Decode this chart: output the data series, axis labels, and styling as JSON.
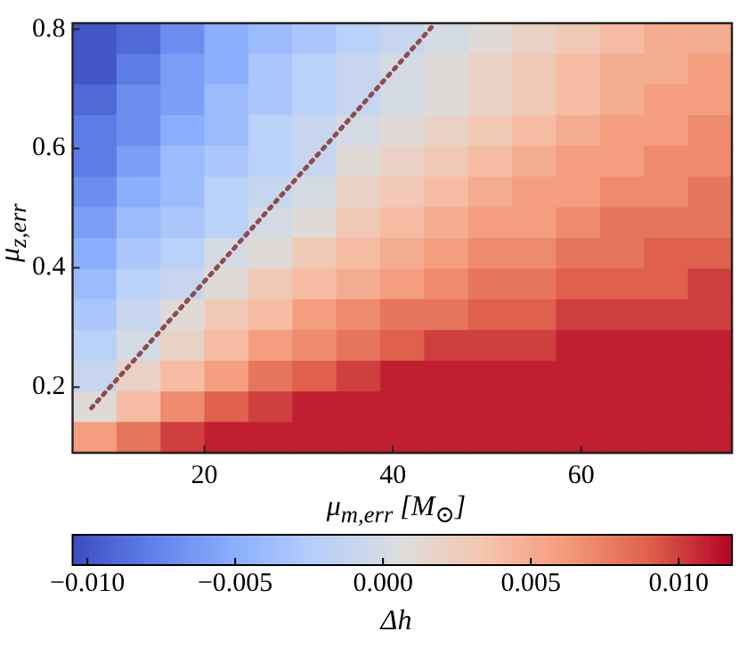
{
  "chart_data": {
    "type": "heatmap",
    "xlabel": "μ$_{m,err}$ [M$_{⊙}$]",
    "ylabel": "μ$_{z,err}$",
    "clabel": "Δh",
    "xlim": [
      6,
      76
    ],
    "ylim": [
      0.09,
      0.81
    ],
    "xticks": [
      20,
      40,
      60
    ],
    "yticks": [
      0.2,
      0.4,
      0.6,
      0.8
    ],
    "clim": [
      -0.0105,
      0.0118
    ],
    "cticks": [
      {
        "value": -0.01,
        "label": "−0.010"
      },
      {
        "value": -0.005,
        "label": "−0.005"
      },
      {
        "value": 0,
        "label": "0.000"
      },
      {
        "value": 0.005,
        "label": "0.005"
      },
      {
        "value": 0.01,
        "label": "0.010"
      }
    ],
    "cells": [
      [
        -0.01,
        -0.009,
        -0.007,
        -0.005,
        -0.004,
        -0.003,
        -0.002,
        -0.001,
        0.0,
        0.001,
        0.002,
        0.003,
        0.004,
        0.005,
        0.005
      ],
      [
        -0.01,
        -0.008,
        -0.006,
        -0.005,
        -0.003,
        -0.002,
        -0.001,
        0.0,
        0.001,
        0.002,
        0.003,
        0.004,
        0.005,
        0.005,
        0.006
      ],
      [
        -0.009,
        -0.007,
        -0.006,
        -0.004,
        -0.003,
        -0.002,
        -0.001,
        0.0,
        0.001,
        0.002,
        0.003,
        0.004,
        0.005,
        0.006,
        0.006
      ],
      [
        -0.008,
        -0.007,
        -0.005,
        -0.004,
        -0.002,
        -0.001,
        0.0,
        0.001,
        0.002,
        0.003,
        0.004,
        0.005,
        0.006,
        0.006,
        0.007
      ],
      [
        -0.008,
        -0.006,
        -0.004,
        -0.003,
        -0.002,
        -0.001,
        0.001,
        0.002,
        0.003,
        0.004,
        0.005,
        0.006,
        0.006,
        0.007,
        0.007
      ],
      [
        -0.007,
        -0.005,
        -0.004,
        -0.002,
        -0.001,
        0.0,
        0.002,
        0.003,
        0.004,
        0.005,
        0.006,
        0.006,
        0.007,
        0.007,
        0.008
      ],
      [
        -0.006,
        -0.004,
        -0.003,
        -0.002,
        0.0,
        0.001,
        0.003,
        0.004,
        0.005,
        0.006,
        0.006,
        0.007,
        0.008,
        0.008,
        0.008
      ],
      [
        -0.005,
        -0.003,
        -0.002,
        0.0,
        0.001,
        0.003,
        0.004,
        0.005,
        0.006,
        0.007,
        0.007,
        0.008,
        0.008,
        0.009,
        0.009
      ],
      [
        -0.004,
        -0.002,
        -0.001,
        0.001,
        0.003,
        0.004,
        0.005,
        0.006,
        0.007,
        0.008,
        0.008,
        0.009,
        0.009,
        0.009,
        0.01
      ],
      [
        -0.003,
        -0.001,
        0.001,
        0.003,
        0.004,
        0.006,
        0.007,
        0.008,
        0.008,
        0.009,
        0.009,
        0.01,
        0.01,
        0.01,
        0.01
      ],
      [
        -0.002,
        0.0,
        0.002,
        0.004,
        0.006,
        0.007,
        0.008,
        0.009,
        0.01,
        0.01,
        0.01,
        0.011,
        0.011,
        0.011,
        0.011
      ],
      [
        -0.001,
        0.002,
        0.004,
        0.006,
        0.008,
        0.009,
        0.01,
        0.011,
        0.011,
        0.011,
        0.011,
        0.011,
        0.011,
        0.011,
        0.011
      ],
      [
        0.001,
        0.004,
        0.007,
        0.009,
        0.01,
        0.011,
        0.011,
        0.011,
        0.011,
        0.011,
        0.011,
        0.011,
        0.011,
        0.011,
        0.011
      ],
      [
        0.006,
        0.008,
        0.01,
        0.011,
        0.011,
        0.011,
        0.011,
        0.011,
        0.011,
        0.011,
        0.011,
        0.011,
        0.011,
        0.011,
        0.011
      ]
    ],
    "series": [
      {
        "type": "line",
        "x": [
          8,
          44.5
        ],
        "values": [
          0.165,
          0.81
        ],
        "color": "#8b4d4d",
        "line_style": "dotted",
        "marker": "none"
      }
    ]
  }
}
